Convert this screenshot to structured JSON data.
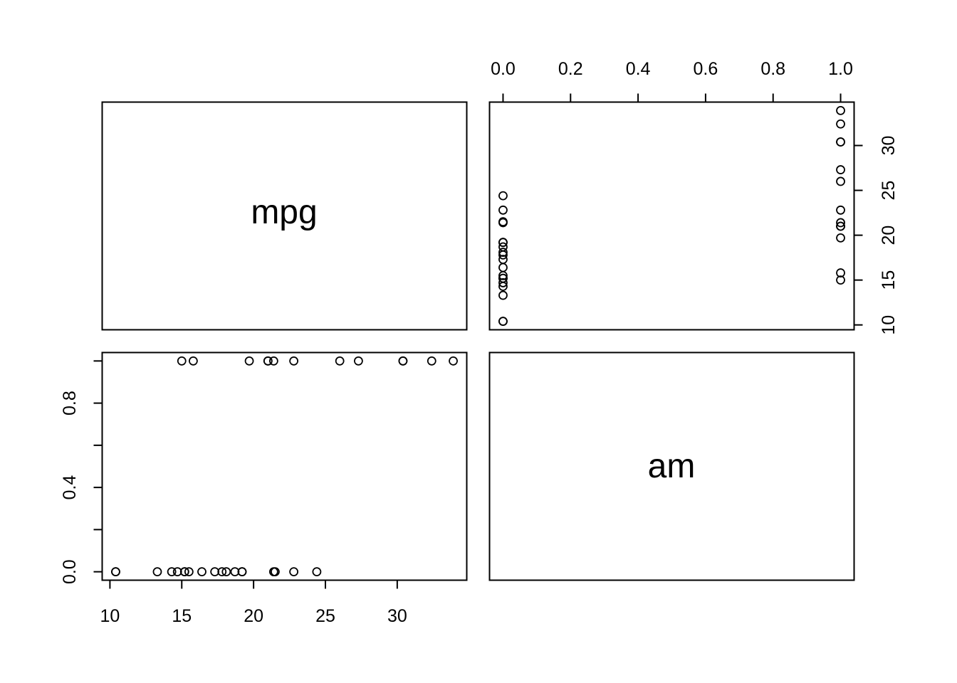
{
  "chart_data": {
    "type": "scatter",
    "subtype": "pairs-matrix",
    "variables": [
      "mpg",
      "am"
    ],
    "panels": {
      "mpg_label": "mpg",
      "am_label": "am"
    },
    "axes": {
      "mpg": {
        "range": [
          9.46,
          34.84
        ],
        "ticks": [
          10,
          15,
          20,
          25,
          30
        ],
        "tick_labels": [
          "10",
          "15",
          "20",
          "25",
          "30"
        ]
      },
      "am": {
        "range": [
          -0.04,
          1.04
        ],
        "ticks": [
          0.0,
          0.2,
          0.4,
          0.6,
          0.8,
          1.0
        ],
        "tick_labels_top": [
          "0.0",
          "0.2",
          "0.4",
          "0.6",
          "0.8",
          "1.0"
        ],
        "tick_labels_left": [
          "0.0",
          "",
          "0.4",
          "",
          "0.8",
          ""
        ]
      }
    },
    "points": [
      {
        "mpg": 21.0,
        "am": 1
      },
      {
        "mpg": 21.0,
        "am": 1
      },
      {
        "mpg": 22.8,
        "am": 1
      },
      {
        "mpg": 21.4,
        "am": 0
      },
      {
        "mpg": 18.7,
        "am": 0
      },
      {
        "mpg": 18.1,
        "am": 0
      },
      {
        "mpg": 14.3,
        "am": 0
      },
      {
        "mpg": 24.4,
        "am": 0
      },
      {
        "mpg": 22.8,
        "am": 0
      },
      {
        "mpg": 19.2,
        "am": 0
      },
      {
        "mpg": 17.8,
        "am": 0
      },
      {
        "mpg": 16.4,
        "am": 0
      },
      {
        "mpg": 17.3,
        "am": 0
      },
      {
        "mpg": 15.2,
        "am": 0
      },
      {
        "mpg": 10.4,
        "am": 0
      },
      {
        "mpg": 10.4,
        "am": 0
      },
      {
        "mpg": 14.7,
        "am": 0
      },
      {
        "mpg": 32.4,
        "am": 1
      },
      {
        "mpg": 30.4,
        "am": 1
      },
      {
        "mpg": 33.9,
        "am": 1
      },
      {
        "mpg": 21.5,
        "am": 0
      },
      {
        "mpg": 15.5,
        "am": 0
      },
      {
        "mpg": 15.2,
        "am": 0
      },
      {
        "mpg": 13.3,
        "am": 0
      },
      {
        "mpg": 19.2,
        "am": 0
      },
      {
        "mpg": 27.3,
        "am": 1
      },
      {
        "mpg": 26.0,
        "am": 1
      },
      {
        "mpg": 30.4,
        "am": 1
      },
      {
        "mpg": 15.8,
        "am": 1
      },
      {
        "mpg": 19.7,
        "am": 1
      },
      {
        "mpg": 15.0,
        "am": 1
      },
      {
        "mpg": 21.4,
        "am": 1
      }
    ],
    "title": "",
    "grid": false,
    "legend": "none"
  }
}
